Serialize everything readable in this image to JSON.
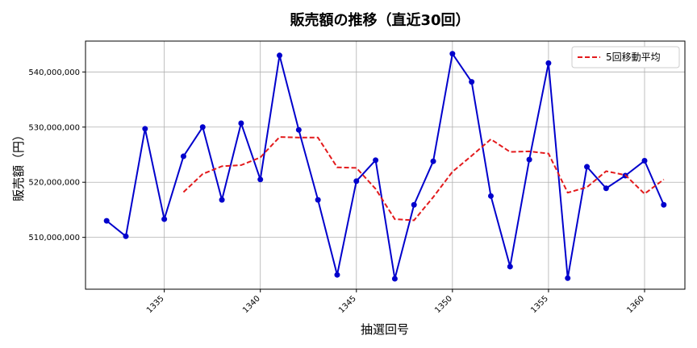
{
  "chart_data": {
    "type": "line",
    "title": "販売額の推移（直近30回）",
    "xlabel": "抽選回号",
    "ylabel": "販売額（円）",
    "xlim": [
      1330.9,
      1362.1
    ],
    "ylim": [
      500600000,
      545600000
    ],
    "xticks": [
      1335,
      1340,
      1345,
      1350,
      1355,
      1360
    ],
    "yticks": [
      510000000,
      520000000,
      530000000,
      540000000
    ],
    "ytick_labels": [
      "510,000,000",
      "520,000,000",
      "530,000,000",
      "540,000,000"
    ],
    "grid": true,
    "legend_position": "top-right",
    "x": [
      1332,
      1333,
      1334,
      1335,
      1336,
      1337,
      1338,
      1339,
      1340,
      1341,
      1342,
      1343,
      1344,
      1345,
      1346,
      1347,
      1348,
      1349,
      1350,
      1351,
      1352,
      1353,
      1354,
      1355,
      1356,
      1357,
      1358,
      1359,
      1360,
      1361
    ],
    "series": [
      {
        "name": "",
        "color": "#0000cc",
        "style": "solid-markers",
        "values": [
          513000000,
          510200000,
          529700000,
          513300000,
          524700000,
          530000000,
          516800000,
          530700000,
          520500000,
          543000000,
          529500000,
          516800000,
          503200000,
          520200000,
          524000000,
          502500000,
          515900000,
          523800000,
          543300000,
          538200000,
          517500000,
          504700000,
          524100000,
          541600000,
          502600000,
          522800000,
          518900000,
          521200000,
          523900000,
          515900000
        ]
      },
      {
        "name": "5回移動平均",
        "color": "#e31a1c",
        "style": "dashed",
        "x": [
          1336,
          1337,
          1338,
          1339,
          1340,
          1341,
          1342,
          1343,
          1344,
          1345,
          1346,
          1347,
          1348,
          1349,
          1350,
          1351,
          1352,
          1353,
          1354,
          1355,
          1356,
          1357,
          1358,
          1359,
          1360,
          1361
        ],
        "values": [
          518200000,
          521500000,
          522900000,
          523100000,
          524500000,
          528200000,
          528100000,
          528100000,
          522700000,
          522600000,
          518800000,
          513300000,
          513100000,
          517300000,
          521900000,
          524800000,
          527800000,
          525500000,
          525600000,
          525200000,
          518100000,
          519100000,
          522000000,
          521300000,
          517900000,
          520500000
        ]
      }
    ]
  }
}
